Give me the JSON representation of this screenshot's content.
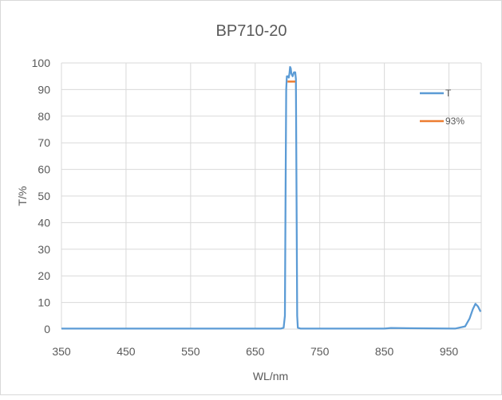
{
  "chart_data": {
    "type": "line",
    "title": "BP710-20",
    "xlabel": "WL/nm",
    "ylabel": "T/%",
    "xlim": [
      350,
      1000
    ],
    "ylim": [
      0,
      100
    ],
    "x_ticks": [
      350,
      450,
      550,
      650,
      750,
      850,
      950
    ],
    "y_ticks": [
      0,
      10,
      20,
      30,
      40,
      50,
      60,
      70,
      80,
      90,
      100
    ],
    "grid": true,
    "legend_position": "right",
    "series": [
      {
        "name": "T",
        "color": "#5b9bd5",
        "points": [
          [
            350,
            0.2
          ],
          [
            500,
            0.2
          ],
          [
            650,
            0.2
          ],
          [
            690,
            0.2
          ],
          [
            694,
            0.5
          ],
          [
            696,
            5
          ],
          [
            697,
            50
          ],
          [
            698,
            90
          ],
          [
            699,
            95
          ],
          [
            701,
            95
          ],
          [
            702,
            94.5
          ],
          [
            703,
            96
          ],
          [
            704,
            98.5
          ],
          [
            705,
            98
          ],
          [
            706,
            96
          ],
          [
            708,
            95
          ],
          [
            710,
            96.5
          ],
          [
            712,
            96.5
          ],
          [
            713,
            94
          ],
          [
            714,
            50
          ],
          [
            715,
            5
          ],
          [
            716,
            0.5
          ],
          [
            720,
            0.2
          ],
          [
            800,
            0.2
          ],
          [
            850,
            0.2
          ],
          [
            860,
            0.4
          ],
          [
            900,
            0.3
          ],
          [
            960,
            0.2
          ],
          [
            975,
            1
          ],
          [
            982,
            4
          ],
          [
            987,
            7.5
          ],
          [
            991,
            9.5
          ],
          [
            995,
            8.5
          ],
          [
            999,
            6.5
          ]
        ]
      },
      {
        "name": "93%",
        "color": "#ed7d31",
        "points": [
          [
            700,
            93
          ],
          [
            712,
            93
          ]
        ]
      }
    ]
  }
}
